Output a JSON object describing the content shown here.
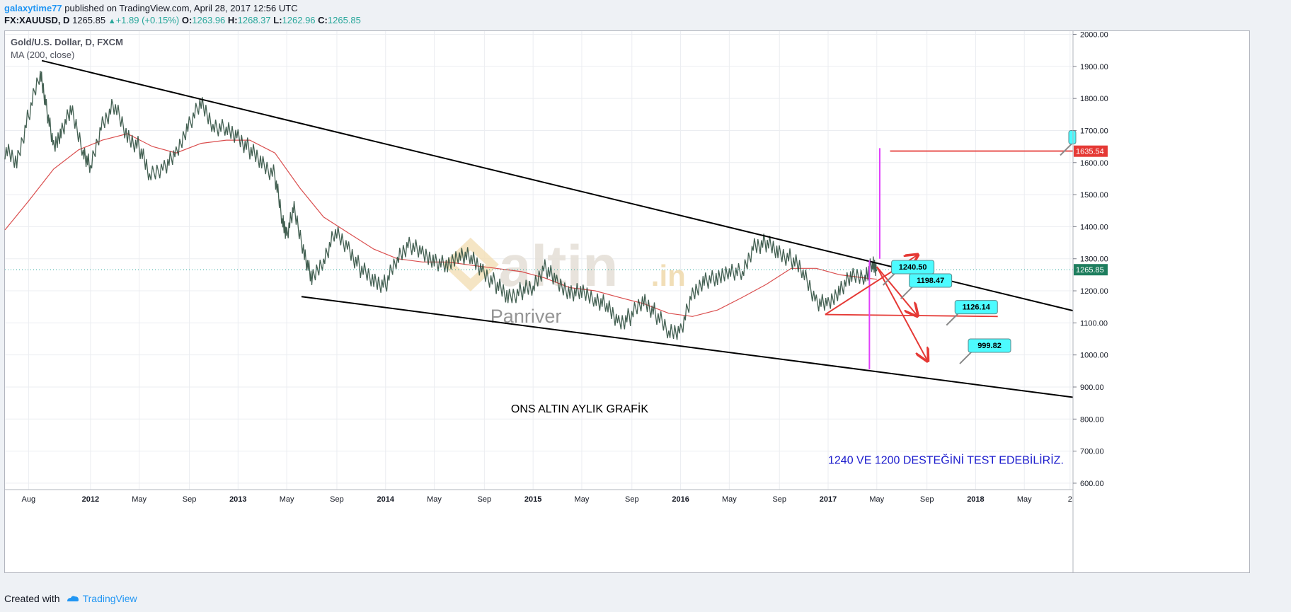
{
  "header": {
    "user": "galaxytime77",
    "published_text": "published on TradingView.com, April 28, 2017 12:56 UTC",
    "symbol": "FX:XAUUSD, D",
    "last_price": "1265.85",
    "change": "+1.89 (+0.15%)",
    "o_label": "O:",
    "o_value": "1263.96",
    "h_label": "H:",
    "h_value": "1268.37",
    "l_label": "L:",
    "l_value": "1262.96",
    "c_label": "C:",
    "c_value": "1265.85"
  },
  "footer": {
    "created_with": "Created with",
    "brand": "TradingView"
  },
  "colors": {
    "up": "#26a69a",
    "accent": "#2196f3",
    "ma": "#d32f2f",
    "trendline": "#000000",
    "annotation_red": "#e53935",
    "magenta": "#e040fb",
    "callout": "#4dfbff",
    "blue_text": "#1a1acc"
  },
  "chart_data": {
    "type": "line",
    "title": "Gold/U.S. Dollar, D, FXCM",
    "indicator_label": "MA (200, close)",
    "price_axis": {
      "ticks": [
        "2000.00",
        "1900.00",
        "1800.00",
        "1700.00",
        "1600.00",
        "1500.00",
        "1400.00",
        "1300.00",
        "1200.00",
        "1100.00",
        "1000.00",
        "900.00",
        "800.00",
        "700.00",
        "600.00"
      ],
      "ylim": [
        580,
        2010
      ],
      "last_price_badge": "1265.85",
      "level_badge": "1635.54"
    },
    "time_axis": {
      "ticks": [
        {
          "label": "Aug",
          "t": 2011.58,
          "bold": false
        },
        {
          "label": "2012",
          "t": 2012.0,
          "bold": true
        },
        {
          "label": "May",
          "t": 2012.33,
          "bold": false
        },
        {
          "label": "Sep",
          "t": 2012.67,
          "bold": false
        },
        {
          "label": "2013",
          "t": 2013.0,
          "bold": true
        },
        {
          "label": "May",
          "t": 2013.33,
          "bold": false
        },
        {
          "label": "Sep",
          "t": 2013.67,
          "bold": false
        },
        {
          "label": "2014",
          "t": 2014.0,
          "bold": true
        },
        {
          "label": "May",
          "t": 2014.33,
          "bold": false
        },
        {
          "label": "Sep",
          "t": 2014.67,
          "bold": false
        },
        {
          "label": "2015",
          "t": 2015.0,
          "bold": true
        },
        {
          "label": "May",
          "t": 2015.33,
          "bold": false
        },
        {
          "label": "Sep",
          "t": 2015.67,
          "bold": false
        },
        {
          "label": "2016",
          "t": 2016.0,
          "bold": true
        },
        {
          "label": "May",
          "t": 2016.33,
          "bold": false
        },
        {
          "label": "Sep",
          "t": 2016.67,
          "bold": false
        },
        {
          "label": "2017",
          "t": 2017.0,
          "bold": true
        },
        {
          "label": "May",
          "t": 2017.33,
          "bold": false
        },
        {
          "label": "Sep",
          "t": 2017.67,
          "bold": false
        },
        {
          "label": "2018",
          "t": 2018.0,
          "bold": true
        },
        {
          "label": "May",
          "t": 2018.33,
          "bold": false
        },
        {
          "label": "2",
          "t": 2018.64,
          "bold": false
        }
      ],
      "xlim": [
        2011.42,
        2018.66
      ]
    },
    "price_series": {
      "name": "",
      "points": [
        [
          2011.42,
          1640
        ],
        [
          2011.5,
          1600
        ],
        [
          2011.58,
          1750
        ],
        [
          2011.66,
          1880
        ],
        [
          2011.7,
          1780
        ],
        [
          2011.75,
          1640
        ],
        [
          2011.8,
          1700
        ],
        [
          2011.87,
          1760
        ],
        [
          2011.95,
          1640
        ],
        [
          2012.0,
          1580
        ],
        [
          2012.08,
          1720
        ],
        [
          2012.16,
          1780
        ],
        [
          2012.25,
          1680
        ],
        [
          2012.33,
          1650
        ],
        [
          2012.4,
          1560
        ],
        [
          2012.5,
          1590
        ],
        [
          2012.58,
          1620
        ],
        [
          2012.66,
          1720
        ],
        [
          2012.75,
          1780
        ],
        [
          2012.83,
          1720
        ],
        [
          2012.92,
          1700
        ],
        [
          2013.0,
          1680
        ],
        [
          2013.08,
          1640
        ],
        [
          2013.16,
          1600
        ],
        [
          2013.25,
          1560
        ],
        [
          2013.3,
          1420
        ],
        [
          2013.33,
          1380
        ],
        [
          2013.38,
          1450
        ],
        [
          2013.45,
          1320
        ],
        [
          2013.5,
          1230
        ],
        [
          2013.58,
          1300
        ],
        [
          2013.66,
          1380
        ],
        [
          2013.75,
          1330
        ],
        [
          2013.83,
          1270
        ],
        [
          2013.92,
          1230
        ],
        [
          2014.0,
          1220
        ],
        [
          2014.08,
          1300
        ],
        [
          2014.16,
          1350
        ],
        [
          2014.25,
          1310
        ],
        [
          2014.33,
          1300
        ],
        [
          2014.42,
          1270
        ],
        [
          2014.5,
          1320
        ],
        [
          2014.58,
          1300
        ],
        [
          2014.66,
          1260
        ],
        [
          2014.75,
          1220
        ],
        [
          2014.83,
          1180
        ],
        [
          2014.92,
          1200
        ],
        [
          2015.0,
          1210
        ],
        [
          2015.08,
          1280
        ],
        [
          2015.16,
          1220
        ],
        [
          2015.25,
          1200
        ],
        [
          2015.33,
          1190
        ],
        [
          2015.42,
          1180
        ],
        [
          2015.5,
          1150
        ],
        [
          2015.58,
          1100
        ],
        [
          2015.66,
          1120
        ],
        [
          2015.75,
          1170
        ],
        [
          2015.83,
          1130
        ],
        [
          2015.92,
          1070
        ],
        [
          2016.0,
          1080
        ],
        [
          2016.08,
          1180
        ],
        [
          2016.16,
          1240
        ],
        [
          2016.25,
          1230
        ],
        [
          2016.33,
          1270
        ],
        [
          2016.42,
          1250
        ],
        [
          2016.5,
          1340
        ],
        [
          2016.58,
          1350
        ],
        [
          2016.66,
          1320
        ],
        [
          2016.75,
          1300
        ],
        [
          2016.83,
          1260
        ],
        [
          2016.92,
          1170
        ],
        [
          2017.0,
          1150
        ],
        [
          2017.08,
          1210
        ],
        [
          2017.16,
          1240
        ],
        [
          2017.25,
          1250
        ],
        [
          2017.3,
          1280
        ],
        [
          2017.33,
          1266
        ]
      ]
    },
    "ma_series": {
      "name": "MA (200, close)",
      "points": [
        [
          2011.42,
          1390
        ],
        [
          2011.58,
          1480
        ],
        [
          2011.75,
          1580
        ],
        [
          2011.92,
          1640
        ],
        [
          2012.08,
          1670
        ],
        [
          2012.25,
          1690
        ],
        [
          2012.42,
          1650
        ],
        [
          2012.58,
          1630
        ],
        [
          2012.75,
          1660
        ],
        [
          2012.92,
          1670
        ],
        [
          2013.08,
          1670
        ],
        [
          2013.25,
          1630
        ],
        [
          2013.42,
          1520
        ],
        [
          2013.58,
          1430
        ],
        [
          2013.75,
          1380
        ],
        [
          2013.92,
          1330
        ],
        [
          2014.08,
          1300
        ],
        [
          2014.25,
          1290
        ],
        [
          2014.42,
          1290
        ],
        [
          2014.58,
          1280
        ],
        [
          2014.75,
          1270
        ],
        [
          2014.92,
          1260
        ],
        [
          2015.08,
          1240
        ],
        [
          2015.25,
          1210
        ],
        [
          2015.42,
          1200
        ],
        [
          2015.58,
          1180
        ],
        [
          2015.75,
          1160
        ],
        [
          2015.92,
          1130
        ],
        [
          2016.08,
          1120
        ],
        [
          2016.25,
          1140
        ],
        [
          2016.42,
          1180
        ],
        [
          2016.58,
          1220
        ],
        [
          2016.75,
          1270
        ],
        [
          2016.92,
          1270
        ],
        [
          2017.08,
          1250
        ],
        [
          2017.25,
          1240
        ],
        [
          2017.33,
          1236
        ]
      ]
    },
    "trendlines": [
      {
        "from": [
          2011.67,
          1918
        ],
        "to": [
          2018.66,
          1138
        ]
      },
      {
        "from": [
          2013.43,
          1182
        ],
        "to": [
          2018.66,
          868
        ]
      }
    ],
    "support_lines": [
      {
        "from": [
          2016.98,
          1126
        ],
        "to": [
          2018.15,
          1120
        ]
      },
      {
        "from": [
          2017.42,
          1636
        ],
        "to": [
          2018.66,
          1636
        ]
      }
    ],
    "projection_arrows": [
      {
        "from": [
          2016.98,
          1126
        ],
        "to": [
          2017.6,
          1310
        ]
      },
      {
        "from": [
          2017.33,
          1275
        ],
        "to": [
          2017.6,
          1125
        ]
      },
      {
        "from": [
          2017.33,
          1275
        ],
        "to": [
          2017.67,
          985
        ]
      }
    ],
    "vertical_markers": [
      {
        "t": 2017.28,
        "from": 955,
        "to": 1295
      },
      {
        "t": 2017.35,
        "from": 1300,
        "to": 1645
      }
    ],
    "callouts": [
      {
        "label": "1240.50",
        "t": 2017.43,
        "price": 1295
      },
      {
        "label": "1198.47",
        "t": 2017.55,
        "price": 1253
      },
      {
        "label": "1126.14",
        "t": 2017.86,
        "price": 1170
      },
      {
        "label": "999.82",
        "t": 2017.95,
        "price": 1050
      },
      {
        "label": "",
        "t": 2018.66,
        "price": 1700
      }
    ],
    "annotations": [
      {
        "text": "ONS ALTIN AYLIK GRAFİK",
        "t": 2014.85,
        "price": 820,
        "color": "#000000"
      },
      {
        "text": "1240 VE 1200 DESTEĞİNİ TEST EDEBİLİRİZ.",
        "t": 2017.0,
        "price": 660,
        "color": "#1a1acc"
      }
    ],
    "watermark": {
      "text": "altin",
      "suffix": ".in",
      "sub": "Panriver"
    }
  }
}
